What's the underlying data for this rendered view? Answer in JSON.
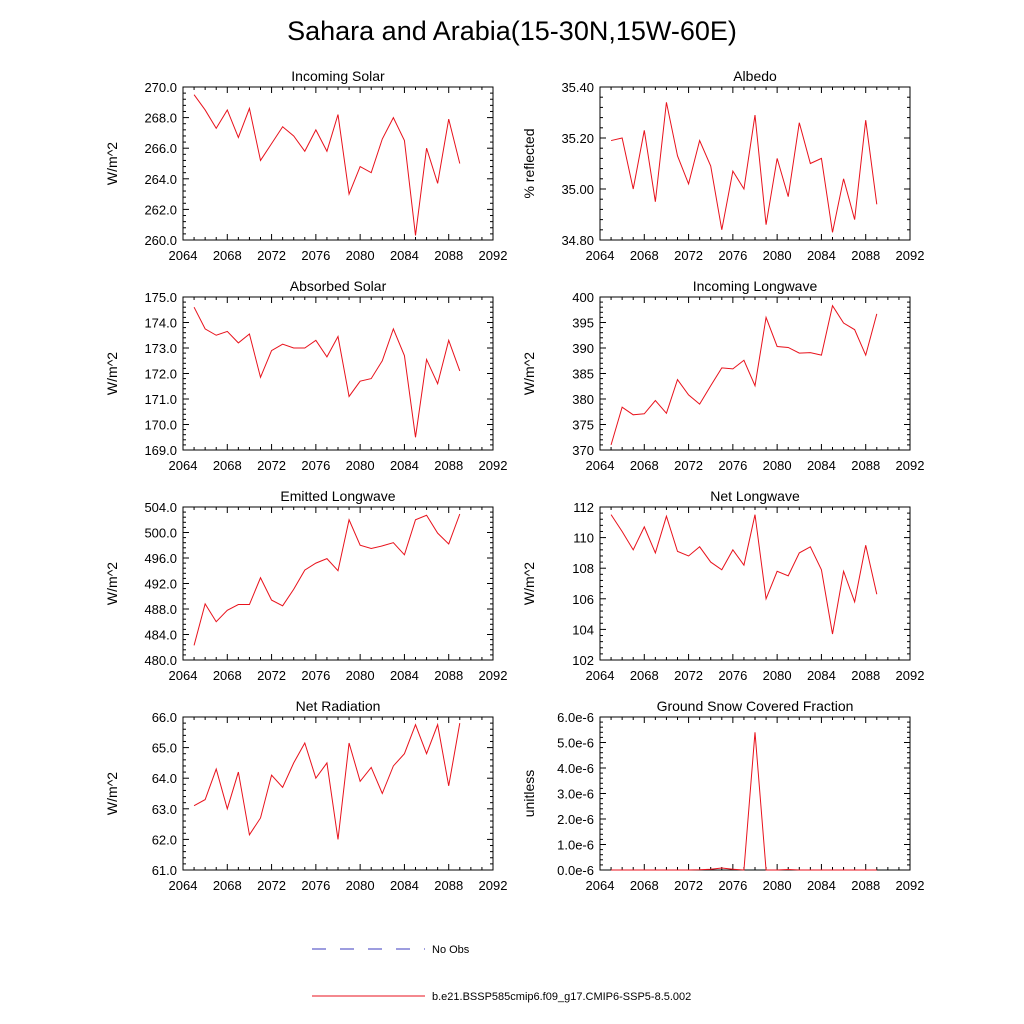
{
  "figure": {
    "title": "Sahara and Arabia(15-30N,15W-60E)"
  },
  "legend": {
    "obs_label": "No Obs",
    "obs_color": "#3b3bbf",
    "model_label": "b.e21.BSSP585cmip6.f09_g17.CMIP6-SSP5-8.5.002",
    "model_color": "#e8121c"
  },
  "chart_data": [
    {
      "type": "line",
      "title": "Incoming Solar",
      "ylabel": "W/m^2",
      "xlim": [
        2064,
        2092
      ],
      "xticks": [
        2064,
        2068,
        2072,
        2076,
        2080,
        2084,
        2088,
        2092
      ],
      "ylim": [
        260,
        270
      ],
      "yticks": [
        "260.0",
        "262.0",
        "264.0",
        "266.0",
        "268.0",
        "270.0"
      ],
      "x": [
        2065,
        2066,
        2067,
        2068,
        2069,
        2070,
        2071,
        2072,
        2073,
        2074,
        2075,
        2076,
        2077,
        2078,
        2079,
        2080,
        2081,
        2082,
        2083,
        2084,
        2085,
        2086,
        2087,
        2088,
        2089
      ],
      "series": [
        {
          "values": [
            269.5,
            268.5,
            267.3,
            268.5,
            266.7,
            268.6,
            265.2,
            266.3,
            267.4,
            266.8,
            265.8,
            267.2,
            265.8,
            268.2,
            263.0,
            264.8,
            264.4,
            266.6,
            268.0,
            266.5,
            260.3,
            266.0,
            263.7,
            267.9,
            265.0
          ]
        }
      ]
    },
    {
      "type": "line",
      "title": "Albedo",
      "ylabel": "% reflected",
      "xlim": [
        2064,
        2092
      ],
      "xticks": [
        2064,
        2068,
        2072,
        2076,
        2080,
        2084,
        2088,
        2092
      ],
      "ylim": [
        34.8,
        35.4
      ],
      "yticks": [
        "34.80",
        "35.00",
        "35.20",
        "35.40"
      ],
      "x": [
        2065,
        2066,
        2067,
        2068,
        2069,
        2070,
        2071,
        2072,
        2073,
        2074,
        2075,
        2076,
        2077,
        2078,
        2079,
        2080,
        2081,
        2082,
        2083,
        2084,
        2085,
        2086,
        2087,
        2088,
        2089
      ],
      "series": [
        {
          "values": [
            35.19,
            35.2,
            35.0,
            35.23,
            34.95,
            35.34,
            35.13,
            35.02,
            35.19,
            35.09,
            34.84,
            35.07,
            35.0,
            35.29,
            34.86,
            35.12,
            34.97,
            35.26,
            35.1,
            35.12,
            34.83,
            35.04,
            34.88,
            35.27,
            34.94
          ]
        }
      ]
    },
    {
      "type": "line",
      "title": "Absorbed Solar",
      "ylabel": "W/m^2",
      "xlim": [
        2064,
        2092
      ],
      "xticks": [
        2064,
        2068,
        2072,
        2076,
        2080,
        2084,
        2088,
        2092
      ],
      "ylim": [
        169,
        175
      ],
      "yticks": [
        "169.0",
        "170.0",
        "171.0",
        "172.0",
        "173.0",
        "174.0",
        "175.0"
      ],
      "x": [
        2065,
        2066,
        2067,
        2068,
        2069,
        2070,
        2071,
        2072,
        2073,
        2074,
        2075,
        2076,
        2077,
        2078,
        2079,
        2080,
        2081,
        2082,
        2083,
        2084,
        2085,
        2086,
        2087,
        2088,
        2089
      ],
      "series": [
        {
          "values": [
            174.6,
            173.75,
            173.5,
            173.65,
            173.2,
            173.55,
            171.85,
            172.9,
            173.15,
            173.0,
            173.0,
            173.3,
            172.65,
            173.45,
            171.1,
            171.7,
            171.8,
            172.5,
            173.75,
            172.7,
            169.5,
            172.55,
            171.6,
            173.3,
            172.1
          ]
        }
      ]
    },
    {
      "type": "line",
      "title": "Incoming Longwave",
      "ylabel": "W/m^2",
      "xlim": [
        2064,
        2092
      ],
      "xticks": [
        2064,
        2068,
        2072,
        2076,
        2080,
        2084,
        2088,
        2092
      ],
      "ylim": [
        370,
        400
      ],
      "yticks": [
        "370",
        "375",
        "380",
        "385",
        "390",
        "395",
        "400"
      ],
      "x": [
        2065,
        2066,
        2067,
        2068,
        2069,
        2070,
        2071,
        2072,
        2073,
        2074,
        2075,
        2076,
        2077,
        2078,
        2079,
        2080,
        2081,
        2082,
        2083,
        2084,
        2085,
        2086,
        2087,
        2088,
        2089
      ],
      "series": [
        {
          "values": [
            371.0,
            378.4,
            376.9,
            377.1,
            379.7,
            377.2,
            383.8,
            380.8,
            379.0,
            382.6,
            386.1,
            385.9,
            387.6,
            382.6,
            396.0,
            390.3,
            390.1,
            389.0,
            389.1,
            388.6,
            398.3,
            394.9,
            393.6,
            388.6,
            396.7
          ]
        }
      ]
    },
    {
      "type": "line",
      "title": "Emitted Longwave",
      "ylabel": "W/m^2",
      "xlim": [
        2064,
        2092
      ],
      "xticks": [
        2064,
        2068,
        2072,
        2076,
        2080,
        2084,
        2088,
        2092
      ],
      "ylim": [
        480,
        504
      ],
      "yticks": [
        "480.0",
        "484.0",
        "488.0",
        "492.0",
        "496.0",
        "500.0",
        "504.0"
      ],
      "x": [
        2065,
        2066,
        2067,
        2068,
        2069,
        2070,
        2071,
        2072,
        2073,
        2074,
        2075,
        2076,
        2077,
        2078,
        2079,
        2080,
        2081,
        2082,
        2083,
        2084,
        2085,
        2086,
        2087,
        2088,
        2089
      ],
      "series": [
        {
          "values": [
            482.3,
            488.8,
            486.0,
            487.8,
            488.7,
            488.7,
            492.9,
            489.4,
            488.5,
            491.1,
            494.1,
            495.2,
            495.9,
            494.0,
            502.0,
            498.0,
            497.5,
            497.9,
            498.4,
            496.5,
            502.0,
            502.7,
            499.9,
            498.2,
            502.9
          ]
        }
      ]
    },
    {
      "type": "line",
      "title": "Net Longwave",
      "ylabel": "W/m^2",
      "xlim": [
        2064,
        2092
      ],
      "xticks": [
        2064,
        2068,
        2072,
        2076,
        2080,
        2084,
        2088,
        2092
      ],
      "ylim": [
        102,
        112
      ],
      "yticks": [
        "102",
        "104",
        "106",
        "108",
        "110",
        "112"
      ],
      "x": [
        2065,
        2066,
        2067,
        2068,
        2069,
        2070,
        2071,
        2072,
        2073,
        2074,
        2075,
        2076,
        2077,
        2078,
        2079,
        2080,
        2081,
        2082,
        2083,
        2084,
        2085,
        2086,
        2087,
        2088,
        2089
      ],
      "series": [
        {
          "values": [
            111.5,
            110.4,
            109.2,
            110.7,
            109.0,
            111.4,
            109.1,
            108.8,
            109.4,
            108.4,
            107.9,
            109.2,
            108.2,
            111.5,
            106.0,
            107.8,
            107.5,
            109.0,
            109.4,
            107.9,
            103.7,
            107.8,
            105.8,
            109.5,
            106.3
          ]
        }
      ]
    },
    {
      "type": "line",
      "title": "Net Radiation",
      "ylabel": "W/m^2",
      "xlim": [
        2064,
        2092
      ],
      "xticks": [
        2064,
        2068,
        2072,
        2076,
        2080,
        2084,
        2088,
        2092
      ],
      "ylim": [
        61,
        66
      ],
      "yticks": [
        "61.0",
        "62.0",
        "63.0",
        "64.0",
        "65.0",
        "66.0"
      ],
      "x": [
        2065,
        2066,
        2067,
        2068,
        2069,
        2070,
        2071,
        2072,
        2073,
        2074,
        2075,
        2076,
        2077,
        2078,
        2079,
        2080,
        2081,
        2082,
        2083,
        2084,
        2085,
        2086,
        2087,
        2088,
        2089
      ],
      "series": [
        {
          "values": [
            63.1,
            63.3,
            64.3,
            63.0,
            64.2,
            62.15,
            62.7,
            64.1,
            63.7,
            64.5,
            65.15,
            64.0,
            64.5,
            62.0,
            65.15,
            63.9,
            64.35,
            63.5,
            64.4,
            64.8,
            65.75,
            64.8,
            65.75,
            63.75,
            65.8
          ]
        }
      ]
    },
    {
      "type": "line",
      "title": "Ground Snow Covered Fraction",
      "ylabel": "unitless",
      "xlim": [
        2064,
        2092
      ],
      "xticks": [
        2064,
        2068,
        2072,
        2076,
        2080,
        2084,
        2088,
        2092
      ],
      "ylim": [
        0,
        6e-06
      ],
      "yticks": [
        "0.0e-6",
        "1.0e-6",
        "2.0e-6",
        "3.0e-6",
        "4.0e-6",
        "5.0e-6",
        "6.0e-6"
      ],
      "x": [
        2065,
        2066,
        2067,
        2068,
        2069,
        2070,
        2071,
        2072,
        2073,
        2074,
        2075,
        2076,
        2077,
        2078,
        2079,
        2080,
        2081,
        2082,
        2083,
        2084,
        2085,
        2086,
        2087,
        2088,
        2089
      ],
      "series": [
        {
          "values": [
            0,
            0,
            0,
            0,
            0,
            0,
            0,
            0,
            1e-08,
            3e-08,
            8e-08,
            3e-08,
            0,
            5.4e-06,
            0,
            0,
            2e-08,
            0,
            0,
            0,
            0,
            0,
            0,
            0,
            0
          ]
        }
      ]
    }
  ]
}
